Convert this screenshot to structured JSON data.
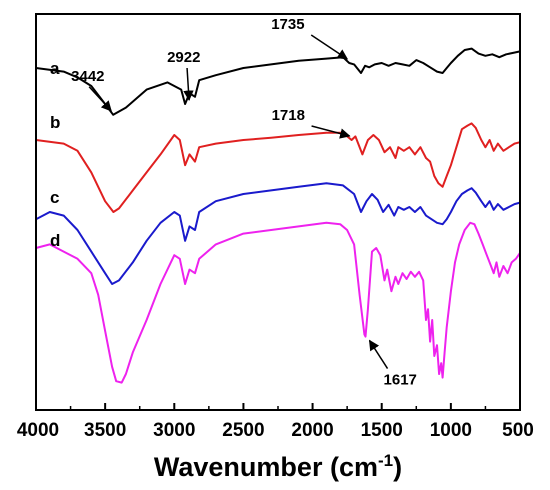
{
  "chart_data": {
    "type": "line",
    "xlabel_main": "Wavenumber (cm",
    "xlabel_sup": "-1",
    "xlabel_end": ")",
    "ylabel": "",
    "xlim": [
      4000,
      500
    ],
    "x_reversed": true,
    "grid": false,
    "x_ticks": [
      "4000",
      "3500",
      "3000",
      "2500",
      "2000",
      "1500",
      "1000",
      "500"
    ],
    "x_tick_values": [
      4000,
      3500,
      3000,
      2500,
      2000,
      1500,
      1000,
      500
    ],
    "series": [
      {
        "name": "a",
        "color": "#000000",
        "points": [
          [
            4000,
            4.55
          ],
          [
            3800,
            4.5
          ],
          [
            3700,
            4.42
          ],
          [
            3600,
            4.3
          ],
          [
            3500,
            4.05
          ],
          [
            3442,
            3.9
          ],
          [
            3350,
            4.0
          ],
          [
            3200,
            4.25
          ],
          [
            3050,
            4.35
          ],
          [
            2950,
            4.25
          ],
          [
            2922,
            4.05
          ],
          [
            2890,
            4.2
          ],
          [
            2850,
            4.15
          ],
          [
            2820,
            4.38
          ],
          [
            2700,
            4.45
          ],
          [
            2500,
            4.55
          ],
          [
            2300,
            4.6
          ],
          [
            2100,
            4.65
          ],
          [
            1900,
            4.68
          ],
          [
            1780,
            4.7
          ],
          [
            1735,
            4.62
          ],
          [
            1700,
            4.6
          ],
          [
            1650,
            4.48
          ],
          [
            1620,
            4.58
          ],
          [
            1590,
            4.56
          ],
          [
            1550,
            4.6
          ],
          [
            1500,
            4.62
          ],
          [
            1450,
            4.58
          ],
          [
            1400,
            4.62
          ],
          [
            1350,
            4.6
          ],
          [
            1300,
            4.58
          ],
          [
            1250,
            4.66
          ],
          [
            1200,
            4.62
          ],
          [
            1150,
            4.56
          ],
          [
            1100,
            4.5
          ],
          [
            1060,
            4.48
          ],
          [
            1030,
            4.55
          ],
          [
            1000,
            4.62
          ],
          [
            950,
            4.72
          ],
          [
            900,
            4.8
          ],
          [
            850,
            4.82
          ],
          [
            800,
            4.75
          ],
          [
            750,
            4.72
          ],
          [
            700,
            4.74
          ],
          [
            650,
            4.7
          ],
          [
            600,
            4.74
          ],
          [
            550,
            4.76
          ],
          [
            500,
            4.78
          ]
        ]
      },
      {
        "name": "b",
        "color": "#e02020",
        "points": [
          [
            4000,
            3.55
          ],
          [
            3800,
            3.5
          ],
          [
            3700,
            3.4
          ],
          [
            3600,
            3.1
          ],
          [
            3500,
            2.7
          ],
          [
            3440,
            2.55
          ],
          [
            3400,
            2.6
          ],
          [
            3300,
            2.85
          ],
          [
            3200,
            3.1
          ],
          [
            3100,
            3.35
          ],
          [
            3000,
            3.62
          ],
          [
            2960,
            3.55
          ],
          [
            2922,
            3.2
          ],
          [
            2890,
            3.35
          ],
          [
            2850,
            3.25
          ],
          [
            2820,
            3.45
          ],
          [
            2700,
            3.5
          ],
          [
            2500,
            3.55
          ],
          [
            2300,
            3.58
          ],
          [
            2100,
            3.62
          ],
          [
            1900,
            3.65
          ],
          [
            1780,
            3.65
          ],
          [
            1718,
            3.55
          ],
          [
            1690,
            3.6
          ],
          [
            1640,
            3.35
          ],
          [
            1600,
            3.55
          ],
          [
            1560,
            3.62
          ],
          [
            1520,
            3.55
          ],
          [
            1480,
            3.38
          ],
          [
            1440,
            3.45
          ],
          [
            1400,
            3.3
          ],
          [
            1380,
            3.45
          ],
          [
            1340,
            3.4
          ],
          [
            1300,
            3.45
          ],
          [
            1260,
            3.35
          ],
          [
            1220,
            3.45
          ],
          [
            1180,
            3.3
          ],
          [
            1150,
            3.25
          ],
          [
            1120,
            3.05
          ],
          [
            1090,
            2.95
          ],
          [
            1060,
            2.9
          ],
          [
            1030,
            3.05
          ],
          [
            1000,
            3.2
          ],
          [
            960,
            3.45
          ],
          [
            920,
            3.7
          ],
          [
            880,
            3.75
          ],
          [
            850,
            3.78
          ],
          [
            820,
            3.72
          ],
          [
            780,
            3.55
          ],
          [
            750,
            3.45
          ],
          [
            720,
            3.55
          ],
          [
            690,
            3.4
          ],
          [
            660,
            3.5
          ],
          [
            620,
            3.4
          ],
          [
            580,
            3.45
          ],
          [
            540,
            3.5
          ],
          [
            500,
            3.52
          ]
        ]
      },
      {
        "name": "c",
        "color": "#1a1acc",
        "points": [
          [
            4000,
            2.45
          ],
          [
            3900,
            2.55
          ],
          [
            3800,
            2.5
          ],
          [
            3700,
            2.3
          ],
          [
            3600,
            2.0
          ],
          [
            3500,
            1.7
          ],
          [
            3450,
            1.55
          ],
          [
            3400,
            1.6
          ],
          [
            3300,
            1.85
          ],
          [
            3200,
            2.15
          ],
          [
            3100,
            2.4
          ],
          [
            3000,
            2.55
          ],
          [
            2960,
            2.5
          ],
          [
            2922,
            2.15
          ],
          [
            2890,
            2.35
          ],
          [
            2850,
            2.3
          ],
          [
            2820,
            2.55
          ],
          [
            2700,
            2.7
          ],
          [
            2500,
            2.8
          ],
          [
            2300,
            2.85
          ],
          [
            2100,
            2.9
          ],
          [
            1900,
            2.95
          ],
          [
            1780,
            2.92
          ],
          [
            1700,
            2.8
          ],
          [
            1650,
            2.55
          ],
          [
            1610,
            2.7
          ],
          [
            1570,
            2.8
          ],
          [
            1530,
            2.72
          ],
          [
            1490,
            2.55
          ],
          [
            1450,
            2.65
          ],
          [
            1410,
            2.5
          ],
          [
            1380,
            2.62
          ],
          [
            1340,
            2.58
          ],
          [
            1300,
            2.62
          ],
          [
            1260,
            2.55
          ],
          [
            1220,
            2.62
          ],
          [
            1180,
            2.5
          ],
          [
            1140,
            2.45
          ],
          [
            1100,
            2.4
          ],
          [
            1060,
            2.38
          ],
          [
            1030,
            2.45
          ],
          [
            1000,
            2.55
          ],
          [
            960,
            2.7
          ],
          [
            920,
            2.8
          ],
          [
            880,
            2.85
          ],
          [
            850,
            2.88
          ],
          [
            820,
            2.82
          ],
          [
            780,
            2.7
          ],
          [
            750,
            2.62
          ],
          [
            720,
            2.7
          ],
          [
            690,
            2.58
          ],
          [
            660,
            2.66
          ],
          [
            620,
            2.58
          ],
          [
            580,
            2.62
          ],
          [
            540,
            2.66
          ],
          [
            500,
            2.68
          ]
        ]
      },
      {
        "name": "d",
        "color": "#ee22ee",
        "points": [
          [
            4000,
            2.05
          ],
          [
            3900,
            2.1
          ],
          [
            3800,
            2.0
          ],
          [
            3700,
            1.9
          ],
          [
            3600,
            1.7
          ],
          [
            3550,
            1.4
          ],
          [
            3500,
            0.9
          ],
          [
            3450,
            0.4
          ],
          [
            3420,
            0.2
          ],
          [
            3380,
            0.18
          ],
          [
            3350,
            0.3
          ],
          [
            3300,
            0.6
          ],
          [
            3200,
            1.05
          ],
          [
            3100,
            1.55
          ],
          [
            3000,
            1.95
          ],
          [
            2960,
            1.9
          ],
          [
            2922,
            1.55
          ],
          [
            2890,
            1.75
          ],
          [
            2850,
            1.7
          ],
          [
            2820,
            1.9
          ],
          [
            2700,
            2.1
          ],
          [
            2500,
            2.25
          ],
          [
            2300,
            2.3
          ],
          [
            2100,
            2.35
          ],
          [
            1900,
            2.4
          ],
          [
            1800,
            2.38
          ],
          [
            1750,
            2.3
          ],
          [
            1700,
            2.1
          ],
          [
            1660,
            1.4
          ],
          [
            1625,
            0.85
          ],
          [
            1617,
            0.82
          ],
          [
            1600,
            1.2
          ],
          [
            1570,
            2.0
          ],
          [
            1540,
            2.05
          ],
          [
            1510,
            1.95
          ],
          [
            1480,
            1.6
          ],
          [
            1460,
            1.75
          ],
          [
            1430,
            1.45
          ],
          [
            1400,
            1.65
          ],
          [
            1380,
            1.55
          ],
          [
            1350,
            1.7
          ],
          [
            1320,
            1.62
          ],
          [
            1290,
            1.72
          ],
          [
            1260,
            1.65
          ],
          [
            1230,
            1.72
          ],
          [
            1200,
            1.6
          ],
          [
            1180,
            1.05
          ],
          [
            1165,
            1.2
          ],
          [
            1150,
            0.75
          ],
          [
            1135,
            1.05
          ],
          [
            1120,
            0.55
          ],
          [
            1100,
            0.7
          ],
          [
            1085,
            0.3
          ],
          [
            1070,
            0.45
          ],
          [
            1060,
            0.25
          ],
          [
            1045,
            0.6
          ],
          [
            1030,
            0.95
          ],
          [
            1000,
            1.45
          ],
          [
            970,
            1.85
          ],
          [
            940,
            2.1
          ],
          [
            900,
            2.3
          ],
          [
            860,
            2.4
          ],
          [
            830,
            2.38
          ],
          [
            800,
            2.25
          ],
          [
            770,
            2.1
          ],
          [
            740,
            1.95
          ],
          [
            710,
            1.8
          ],
          [
            690,
            1.7
          ],
          [
            670,
            1.85
          ],
          [
            650,
            1.65
          ],
          [
            620,
            1.8
          ],
          [
            590,
            1.7
          ],
          [
            560,
            1.85
          ],
          [
            530,
            1.9
          ],
          [
            500,
            1.98
          ]
        ]
      }
    ],
    "annotations": [
      {
        "text": "3442",
        "x": 3442,
        "y": 3.9,
        "series": "a"
      },
      {
        "text": "2922",
        "x": 2922,
        "y": 4.05,
        "series": "a"
      },
      {
        "text": "1735",
        "x": 1735,
        "y": 4.62,
        "series": "a"
      },
      {
        "text": "1718",
        "x": 1718,
        "y": 3.55,
        "series": "b"
      },
      {
        "text": "1617",
        "x": 1617,
        "y": 0.82,
        "series": "d"
      }
    ],
    "ylim": [
      -0.2,
      5.3
    ]
  }
}
